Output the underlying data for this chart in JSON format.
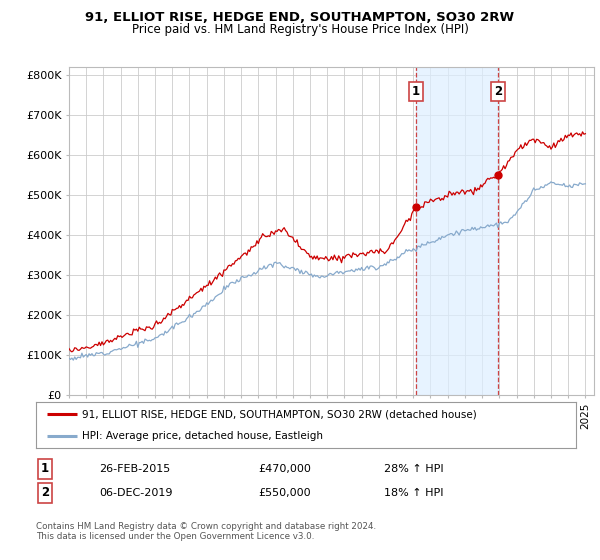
{
  "title": "91, ELLIOT RISE, HEDGE END, SOUTHAMPTON, SO30 2RW",
  "subtitle": "Price paid vs. HM Land Registry's House Price Index (HPI)",
  "legend_line1": "91, ELLIOT RISE, HEDGE END, SOUTHAMPTON, SO30 2RW (detached house)",
  "legend_line2": "HPI: Average price, detached house, Eastleigh",
  "annotation1_label": "1",
  "annotation1_date": "26-FEB-2015",
  "annotation1_price": "£470,000",
  "annotation1_hpi": "28% ↑ HPI",
  "annotation2_label": "2",
  "annotation2_date": "06-DEC-2019",
  "annotation2_price": "£550,000",
  "annotation2_hpi": "18% ↑ HPI",
  "footer": "Contains HM Land Registry data © Crown copyright and database right 2024.\nThis data is licensed under the Open Government Licence v3.0.",
  "red_color": "#cc0000",
  "blue_color": "#88aacc",
  "dashed_vline_color": "#cc4444",
  "shaded_color": "#ddeeff",
  "background_color": "#ffffff",
  "grid_color": "#cccccc",
  "ylim": [
    0,
    820000
  ],
  "yticks": [
    0,
    100000,
    200000,
    300000,
    400000,
    500000,
    600000,
    700000,
    800000
  ],
  "xlim_start": 1995.0,
  "xlim_end": 2025.5,
  "sale1_x": 2015.15,
  "sale1_y": 470000,
  "sale2_x": 2019.92,
  "sale2_y": 550000
}
